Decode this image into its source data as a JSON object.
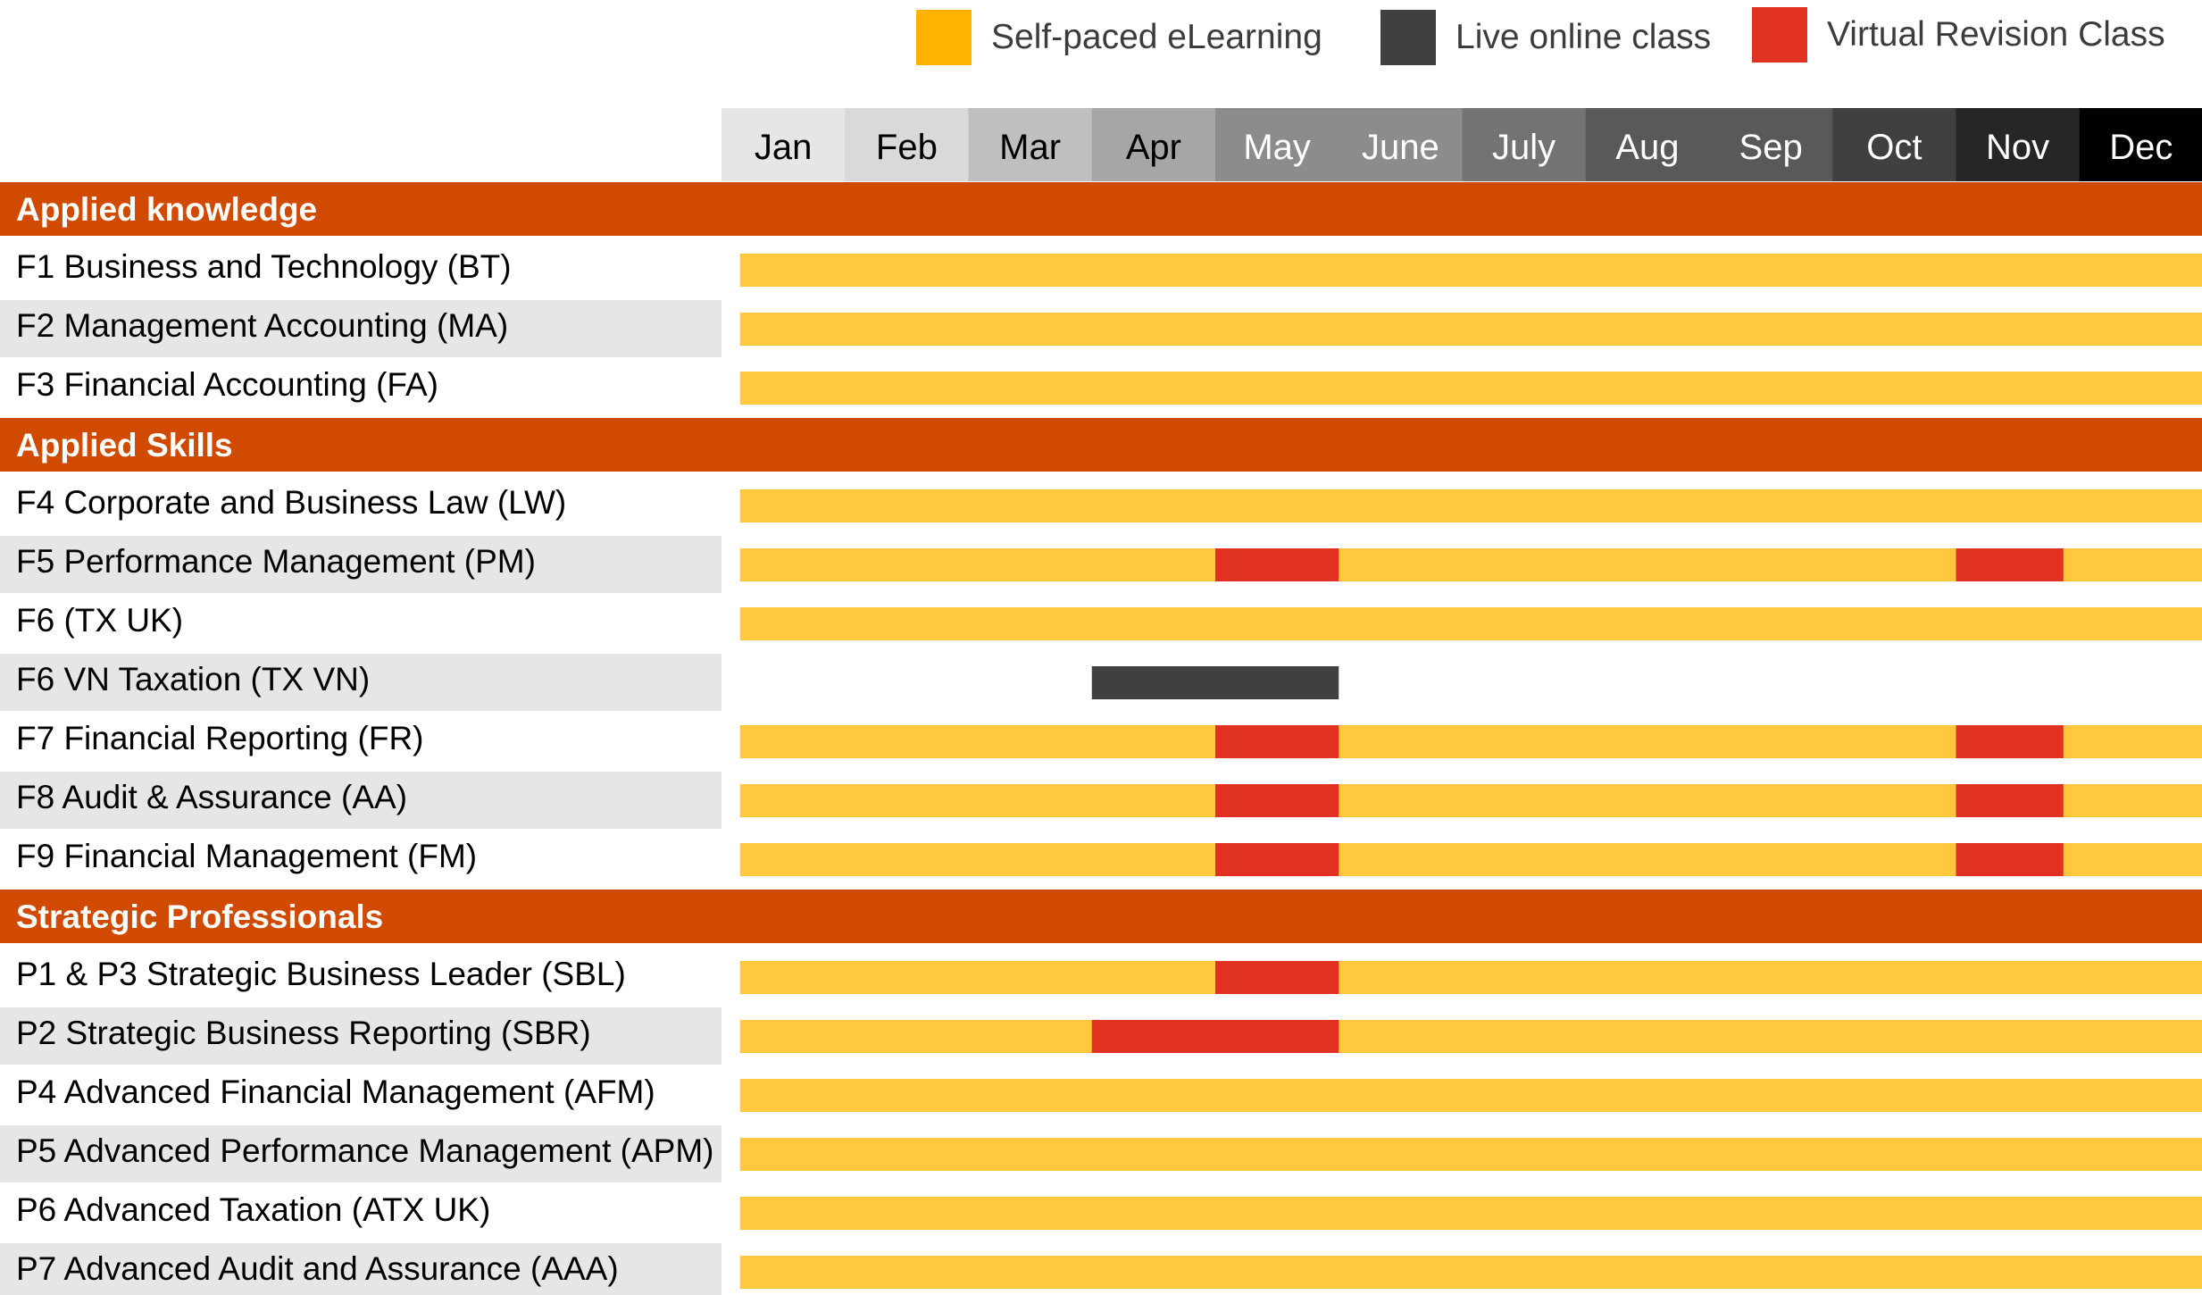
{
  "legend": [
    {
      "label": "Self-paced eLearning",
      "color": "#FFB300"
    },
    {
      "label": "Live online class",
      "color": "#404040"
    },
    {
      "label": "Virtual Revision Class",
      "color": "#E03121"
    }
  ],
  "colors": {
    "section_bg": "#D04A02",
    "stripe_bg": "#E6E6E6",
    "elearning_bar": "#FFC83D",
    "live_bar": "#404040",
    "revision_bar": "#E03121"
  },
  "chart_data": {
    "type": "gantt",
    "months": [
      "Jan",
      "Feb",
      "Mar",
      "Apr",
      "May",
      "June",
      "July",
      "Aug",
      "Sep",
      "Oct",
      "Nov",
      "Dec"
    ],
    "month_header_colors": [
      "#E6E6E6",
      "#D9D9D9",
      "#BFBFBF",
      "#A6A6A6",
      "#8C8C8C",
      "#8C8C8C",
      "#737373",
      "#595959",
      "#595959",
      "#404040",
      "#262626",
      "#000000"
    ],
    "month_header_text_colors": [
      "#000000",
      "#000000",
      "#000000",
      "#000000",
      "#ffffff",
      "#ffffff",
      "#ffffff",
      "#ffffff",
      "#ffffff",
      "#ffffff",
      "#ffffff",
      "#ffffff"
    ],
    "rows": [
      {
        "kind": "section",
        "label": "Applied knowledge"
      },
      {
        "kind": "course",
        "label": "F1 Business and Technology (BT)",
        "segments": [
          {
            "type": "elearning",
            "start": 0.15,
            "end": 12
          }
        ]
      },
      {
        "kind": "course",
        "label": "F2 Management Accounting (MA)",
        "segments": [
          {
            "type": "elearning",
            "start": 0.15,
            "end": 12
          }
        ]
      },
      {
        "kind": "course",
        "label": "F3 Financial Accounting (FA)",
        "segments": [
          {
            "type": "elearning",
            "start": 0.15,
            "end": 12
          }
        ]
      },
      {
        "kind": "section",
        "label": "Applied Skills"
      },
      {
        "kind": "course",
        "label": "F4 Corporate and Business Law (LW)",
        "segments": [
          {
            "type": "elearning",
            "start": 0.15,
            "end": 12
          }
        ]
      },
      {
        "kind": "course",
        "label": "F5 Performance Management (PM)",
        "segments": [
          {
            "type": "elearning",
            "start": 0.15,
            "end": 12
          },
          {
            "type": "revision",
            "start": 4,
            "end": 5
          },
          {
            "type": "revision",
            "start": 10,
            "end": 10.87
          }
        ]
      },
      {
        "kind": "course",
        "label": "F6 (TX UK)",
        "segments": [
          {
            "type": "elearning",
            "start": 0.15,
            "end": 12
          }
        ]
      },
      {
        "kind": "course",
        "label": "F6 VN Taxation (TX VN)",
        "segments": [
          {
            "type": "live",
            "start": 3,
            "end": 5
          }
        ]
      },
      {
        "kind": "course",
        "label": "F7 Financial Reporting (FR)",
        "segments": [
          {
            "type": "elearning",
            "start": 0.15,
            "end": 12
          },
          {
            "type": "revision",
            "start": 4,
            "end": 5
          },
          {
            "type": "revision",
            "start": 10,
            "end": 10.87
          }
        ]
      },
      {
        "kind": "course",
        "label": "F8 Audit & Assurance (AA)",
        "segments": [
          {
            "type": "elearning",
            "start": 0.15,
            "end": 12
          },
          {
            "type": "revision",
            "start": 4,
            "end": 5
          },
          {
            "type": "revision",
            "start": 10,
            "end": 10.87
          }
        ]
      },
      {
        "kind": "course",
        "label": "F9 Financial Management (FM)",
        "segments": [
          {
            "type": "elearning",
            "start": 0.15,
            "end": 12
          },
          {
            "type": "revision",
            "start": 4,
            "end": 5
          },
          {
            "type": "revision",
            "start": 10,
            "end": 10.87
          }
        ]
      },
      {
        "kind": "section",
        "label": "Strategic Professionals"
      },
      {
        "kind": "course",
        "label": "P1 & P3 Strategic Business Leader (SBL)",
        "segments": [
          {
            "type": "elearning",
            "start": 0.15,
            "end": 12
          },
          {
            "type": "revision",
            "start": 4,
            "end": 5
          }
        ]
      },
      {
        "kind": "course",
        "label": "P2 Strategic Business Reporting (SBR)",
        "segments": [
          {
            "type": "elearning",
            "start": 0.15,
            "end": 12
          },
          {
            "type": "revision",
            "start": 3,
            "end": 5
          }
        ]
      },
      {
        "kind": "course",
        "label": "P4 Advanced Financial Management (AFM)",
        "segments": [
          {
            "type": "elearning",
            "start": 0.15,
            "end": 12
          }
        ]
      },
      {
        "kind": "course",
        "label": "P5 Advanced Performance Management (APM)",
        "segments": [
          {
            "type": "elearning",
            "start": 0.15,
            "end": 12
          }
        ]
      },
      {
        "kind": "course",
        "label": "P6 Advanced Taxation (ATX UK)",
        "segments": [
          {
            "type": "elearning",
            "start": 0.15,
            "end": 12
          }
        ]
      },
      {
        "kind": "course",
        "label": "P7 Advanced Audit and Assurance (AAA)",
        "segments": [
          {
            "type": "elearning",
            "start": 0.15,
            "end": 12
          }
        ]
      }
    ]
  }
}
